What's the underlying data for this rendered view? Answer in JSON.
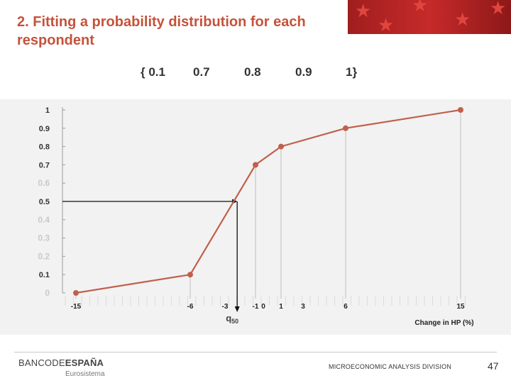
{
  "slide": {
    "title": "2. Fitting a probability distribution for each respondent",
    "probabilities": [
      "{ 0.1",
      "0.7",
      "0.8",
      "0.9",
      "1}"
    ],
    "footer": {
      "logo_prefix": "BANCODE",
      "logo_bold": "ESPAÑA",
      "logo_sub": "Eurosistema",
      "division": "MICROECONOMIC ANALYSIS DIVISION",
      "page_number": "47"
    }
  },
  "chart_data": {
    "type": "line",
    "xlabel": "Change in HP (%)",
    "ylabel": "",
    "x": [
      -15,
      -6,
      -1,
      1,
      6,
      15
    ],
    "series": [
      {
        "values": [
          0,
          0.1,
          0.7,
          0.8,
          0.9,
          1
        ]
      }
    ],
    "x_ticks_labeled": [
      "-15",
      "-6",
      "-3",
      "-1",
      "0",
      "1",
      "3",
      "6",
      "15"
    ],
    "y_ticks": [
      {
        "label": "1",
        "value": 1.0,
        "faded": false
      },
      {
        "label": "0.9",
        "value": 0.9,
        "faded": false
      },
      {
        "label": "0.8",
        "value": 0.8,
        "faded": false
      },
      {
        "label": "0.7",
        "value": 0.7,
        "faded": false
      },
      {
        "label": "0.6",
        "value": 0.6,
        "faded": true
      },
      {
        "label": "0.5",
        "value": 0.5,
        "faded": false
      },
      {
        "label": "0.4",
        "value": 0.4,
        "faded": true
      },
      {
        "label": "0.3",
        "value": 0.3,
        "faded": true
      },
      {
        "label": "0.2",
        "value": 0.2,
        "faded": true
      },
      {
        "label": "0.1",
        "value": 0.1,
        "faded": false
      },
      {
        "label": "0",
        "value": 0.0,
        "faded": true
      }
    ],
    "median_annotation": {
      "label": "q50",
      "x": -2.2,
      "y": 0.5
    },
    "ylim": [
      0,
      1
    ],
    "line_color": "#c0604c",
    "gridlines": "vertical at data points"
  }
}
